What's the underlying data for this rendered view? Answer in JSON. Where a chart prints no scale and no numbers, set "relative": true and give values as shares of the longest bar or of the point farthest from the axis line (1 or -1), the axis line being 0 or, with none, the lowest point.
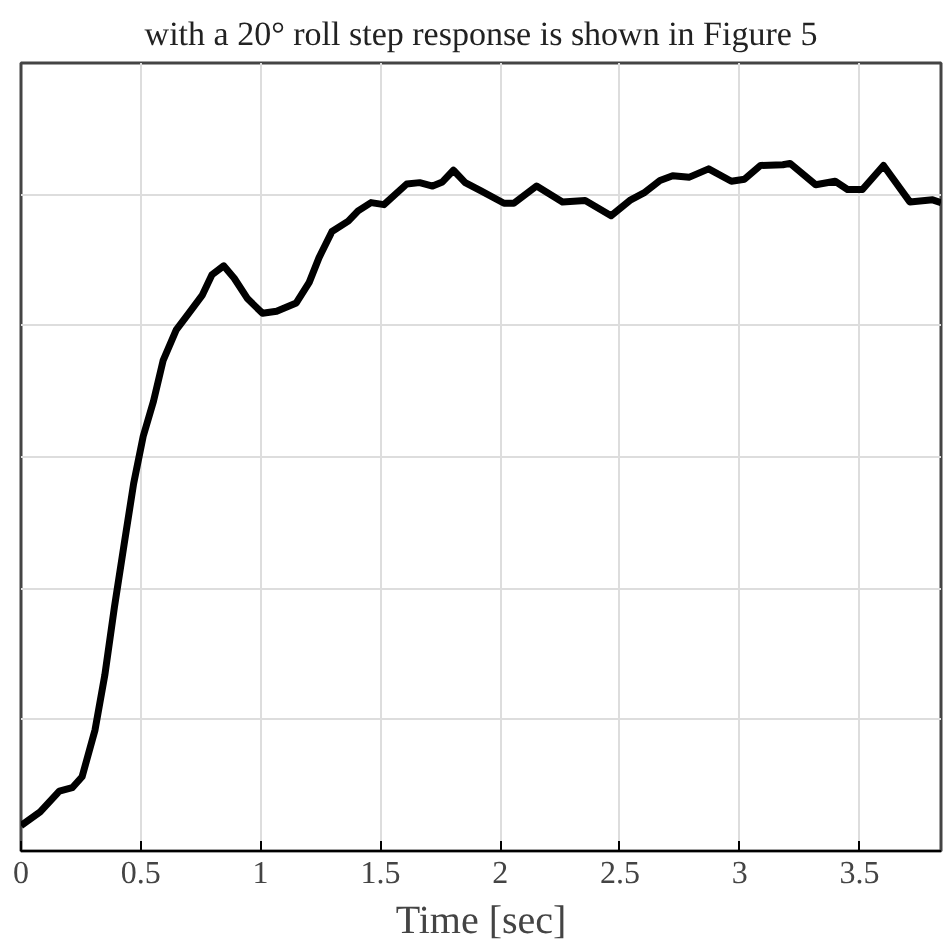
{
  "chart_data": {
    "type": "line",
    "relative": true,
    "xlabel": "Time [sec]",
    "annotations": [
      "with a 20° roll step response is shown in Figure 5"
    ],
    "xlim": [
      0,
      3.84
    ],
    "xticks": [
      0,
      0.5,
      1,
      1.5,
      2,
      2.5,
      3,
      3.5
    ],
    "grid": true,
    "line_style": "solid",
    "series": [
      {
        "color": "#000000",
        "x": [
          0,
          0.08,
          0.16,
          0.214,
          0.255,
          0.309,
          0.35,
          0.39,
          0.43,
          0.47,
          0.51,
          0.553,
          0.593,
          0.648,
          0.7,
          0.756,
          0.797,
          0.846,
          0.89,
          0.946,
          1.008,
          1.067,
          1.149,
          1.203,
          1.244,
          1.298,
          1.366,
          1.407,
          1.461,
          1.515,
          1.61,
          1.664,
          1.718,
          1.759,
          1.805,
          1.854,
          1.92,
          2.016,
          2.057,
          2.152,
          2.26,
          2.355,
          2.463,
          2.545,
          2.6,
          2.667,
          2.72,
          2.79,
          2.87,
          2.965,
          3.02,
          3.087,
          3.18,
          3.21,
          3.317,
          3.398,
          3.45,
          3.512,
          3.6,
          3.71,
          3.805,
          3.84
        ],
        "values": [
          0.037,
          0.057,
          0.087,
          0.092,
          0.108,
          0.176,
          0.256,
          0.355,
          0.445,
          0.534,
          0.603,
          0.654,
          0.713,
          0.758,
          0.782,
          0.808,
          0.838,
          0.851,
          0.833,
          0.803,
          0.782,
          0.785,
          0.797,
          0.827,
          0.863,
          0.901,
          0.916,
          0.931,
          0.943,
          0.94,
          0.97,
          0.972,
          0.967,
          0.973,
          0.99,
          0.972,
          0.96,
          0.942,
          0.942,
          0.967,
          0.944,
          0.946,
          0.924,
          0.947,
          0.957,
          0.975,
          0.982,
          0.98,
          0.992,
          0.974,
          0.977,
          0.997,
          0.998,
          1,
          0.969,
          0.974,
          0.962,
          0.962,
          0.997,
          0.944,
          0.947,
          0.943
        ]
      }
    ]
  }
}
